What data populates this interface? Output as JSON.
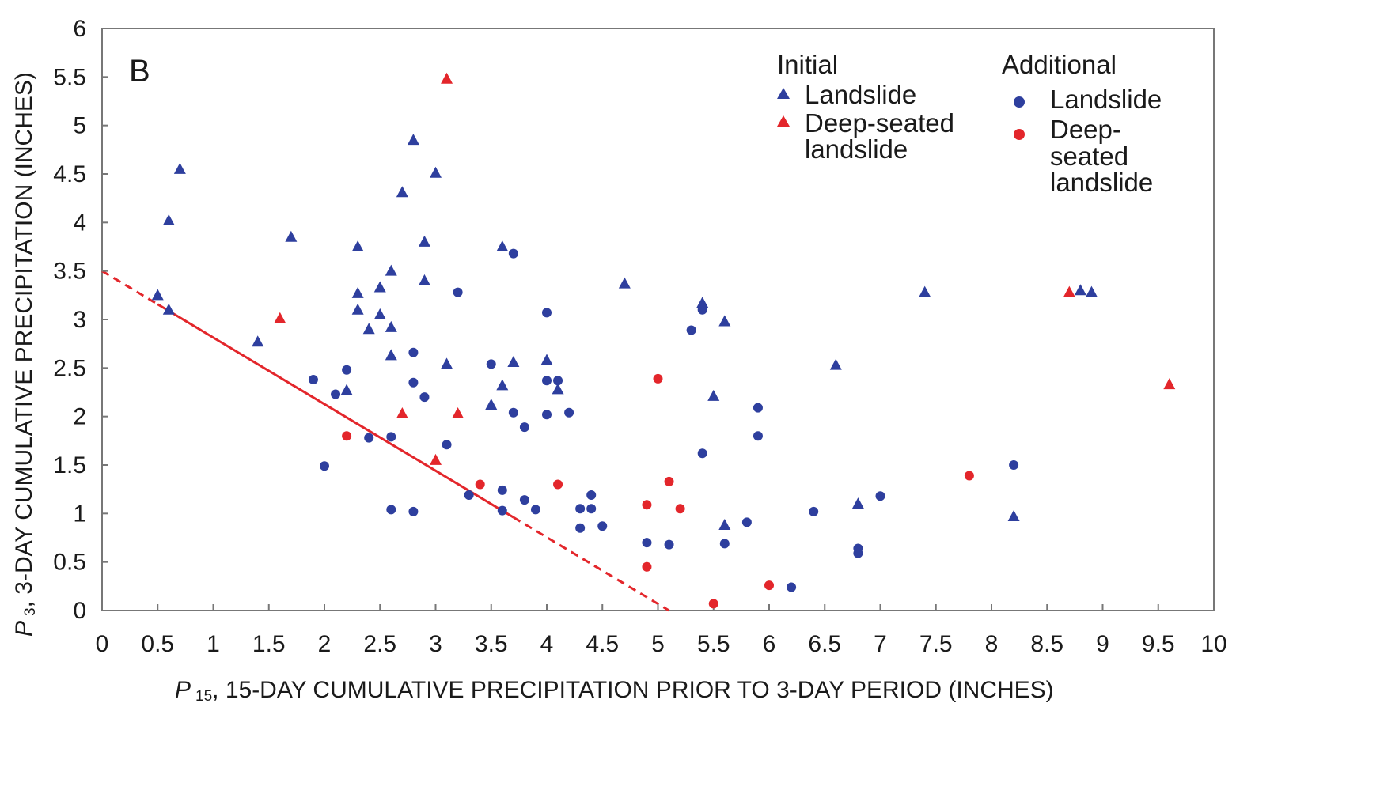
{
  "chart_data": {
    "type": "scatter",
    "panel_label": "B",
    "xlabel_prefix": "P",
    "xlabel_subscript": "15",
    "xlabel_text": ", 15-DAY CUMULATIVE PRECIPITATION PRIOR TO 3-DAY PERIOD (INCHES)",
    "ylabel_prefix": "P",
    "ylabel_subscript": "3",
    "ylabel_text": ", 3-DAY CUMULATIVE PRECIPITATION (INCHES)",
    "xlim": [
      0,
      10
    ],
    "ylim": [
      0,
      6
    ],
    "x_ticks": [
      "0",
      "0.5",
      "1",
      "1.5",
      "2",
      "2.5",
      "3",
      "3.5",
      "4",
      "4.5",
      "5",
      "5.5",
      "6",
      "6.5",
      "7",
      "7.5",
      "8",
      "8.5",
      "9",
      "9.5",
      "10"
    ],
    "y_ticks": [
      "0",
      "0.5",
      "1",
      "1.5",
      "2",
      "2.5",
      "3",
      "3.5",
      "4",
      "4.5",
      "5",
      "5.5",
      "6"
    ],
    "grid": false,
    "colors": {
      "blue": "#2e3f9e",
      "red": "#e3262b",
      "axis": "#777777"
    },
    "legend": {
      "placement": "top-right",
      "initial_heading": "Initial",
      "additional_heading": "Additional",
      "initial_landslide": "Landslide",
      "initial_deep_line1": "Deep-seated",
      "initial_deep_line2": "landslide",
      "additional_landslide": "Landslide",
      "additional_deep_line1": "Deep-",
      "additional_deep_line2": "seated",
      "additional_deep_line3": "landslide"
    },
    "threshold_line": {
      "points": [
        [
          0,
          3.5
        ],
        [
          5.1,
          0
        ]
      ],
      "solid_range": [
        0.5,
        3.7
      ]
    },
    "series": [
      {
        "key": "initial_landslide",
        "marker": "triangle",
        "color": "#2e3f9e",
        "points": [
          [
            0.5,
            3.25
          ],
          [
            0.6,
            3.1
          ],
          [
            0.6,
            4.02
          ],
          [
            0.7,
            4.55
          ],
          [
            1.4,
            2.77
          ],
          [
            1.7,
            3.85
          ],
          [
            2.2,
            2.27
          ],
          [
            2.3,
            3.75
          ],
          [
            2.3,
            3.27
          ],
          [
            2.3,
            3.1
          ],
          [
            2.4,
            2.9
          ],
          [
            2.5,
            3.33
          ],
          [
            2.5,
            3.05
          ],
          [
            2.6,
            3.5
          ],
          [
            2.6,
            2.92
          ],
          [
            2.6,
            2.63
          ],
          [
            2.7,
            4.31
          ],
          [
            2.8,
            4.85
          ],
          [
            2.9,
            3.8
          ],
          [
            2.9,
            3.4
          ],
          [
            3.0,
            4.51
          ],
          [
            3.1,
            2.54
          ],
          [
            3.5,
            2.12
          ],
          [
            3.6,
            3.75
          ],
          [
            3.6,
            2.32
          ],
          [
            3.7,
            2.56
          ],
          [
            4.0,
            2.58
          ],
          [
            4.1,
            2.28
          ],
          [
            4.7,
            3.37
          ],
          [
            5.4,
            3.17
          ],
          [
            5.5,
            2.21
          ],
          [
            5.6,
            2.98
          ],
          [
            5.6,
            0.88
          ],
          [
            6.6,
            2.53
          ],
          [
            6.8,
            1.1
          ],
          [
            7.4,
            3.28
          ],
          [
            8.2,
            0.97
          ],
          [
            8.8,
            3.3
          ],
          [
            8.9,
            3.28
          ]
        ]
      },
      {
        "key": "initial_deep",
        "marker": "triangle",
        "color": "#e3262b",
        "points": [
          [
            1.6,
            3.01
          ],
          [
            2.7,
            2.03
          ],
          [
            3.0,
            1.55
          ],
          [
            3.1,
            5.48
          ],
          [
            3.2,
            2.03
          ],
          [
            8.7,
            3.28
          ],
          [
            9.6,
            2.33
          ]
        ]
      },
      {
        "key": "additional_landslide",
        "marker": "circle",
        "color": "#2e3f9e",
        "points": [
          [
            1.9,
            2.38
          ],
          [
            2.0,
            1.49
          ],
          [
            2.1,
            2.23
          ],
          [
            2.2,
            2.48
          ],
          [
            2.4,
            1.78
          ],
          [
            2.6,
            1.79
          ],
          [
            2.6,
            1.04
          ],
          [
            2.8,
            2.66
          ],
          [
            2.8,
            2.35
          ],
          [
            2.8,
            1.02
          ],
          [
            2.9,
            2.2
          ],
          [
            3.1,
            1.71
          ],
          [
            3.2,
            3.28
          ],
          [
            3.3,
            1.19
          ],
          [
            3.5,
            2.54
          ],
          [
            3.6,
            1.24
          ],
          [
            3.6,
            1.03
          ],
          [
            3.7,
            3.68
          ],
          [
            3.7,
            2.04
          ],
          [
            3.8,
            1.89
          ],
          [
            3.8,
            1.14
          ],
          [
            3.9,
            1.04
          ],
          [
            4.0,
            3.07
          ],
          [
            4.0,
            2.37
          ],
          [
            4.0,
            2.02
          ],
          [
            4.1,
            2.37
          ],
          [
            4.2,
            2.04
          ],
          [
            4.3,
            1.05
          ],
          [
            4.3,
            0.85
          ],
          [
            4.4,
            1.19
          ],
          [
            4.4,
            1.05
          ],
          [
            4.5,
            0.87
          ],
          [
            4.9,
            0.7
          ],
          [
            5.1,
            0.68
          ],
          [
            5.3,
            2.89
          ],
          [
            5.4,
            3.1
          ],
          [
            5.4,
            1.62
          ],
          [
            5.6,
            0.69
          ],
          [
            5.8,
            0.91
          ],
          [
            5.9,
            2.09
          ],
          [
            5.9,
            1.8
          ],
          [
            6.2,
            0.24
          ],
          [
            6.4,
            1.02
          ],
          [
            6.8,
            0.64
          ],
          [
            6.8,
            0.59
          ],
          [
            7.0,
            1.18
          ],
          [
            8.2,
            1.5
          ]
        ]
      },
      {
        "key": "additional_deep",
        "marker": "circle",
        "color": "#e3262b",
        "points": [
          [
            2.2,
            1.8
          ],
          [
            3.4,
            1.3
          ],
          [
            4.1,
            1.3
          ],
          [
            4.9,
            1.09
          ],
          [
            4.9,
            0.45
          ],
          [
            5.0,
            2.39
          ],
          [
            5.1,
            1.33
          ],
          [
            5.2,
            1.05
          ],
          [
            5.5,
            0.07
          ],
          [
            6.0,
            0.26
          ],
          [
            7.8,
            1.39
          ]
        ]
      }
    ]
  }
}
